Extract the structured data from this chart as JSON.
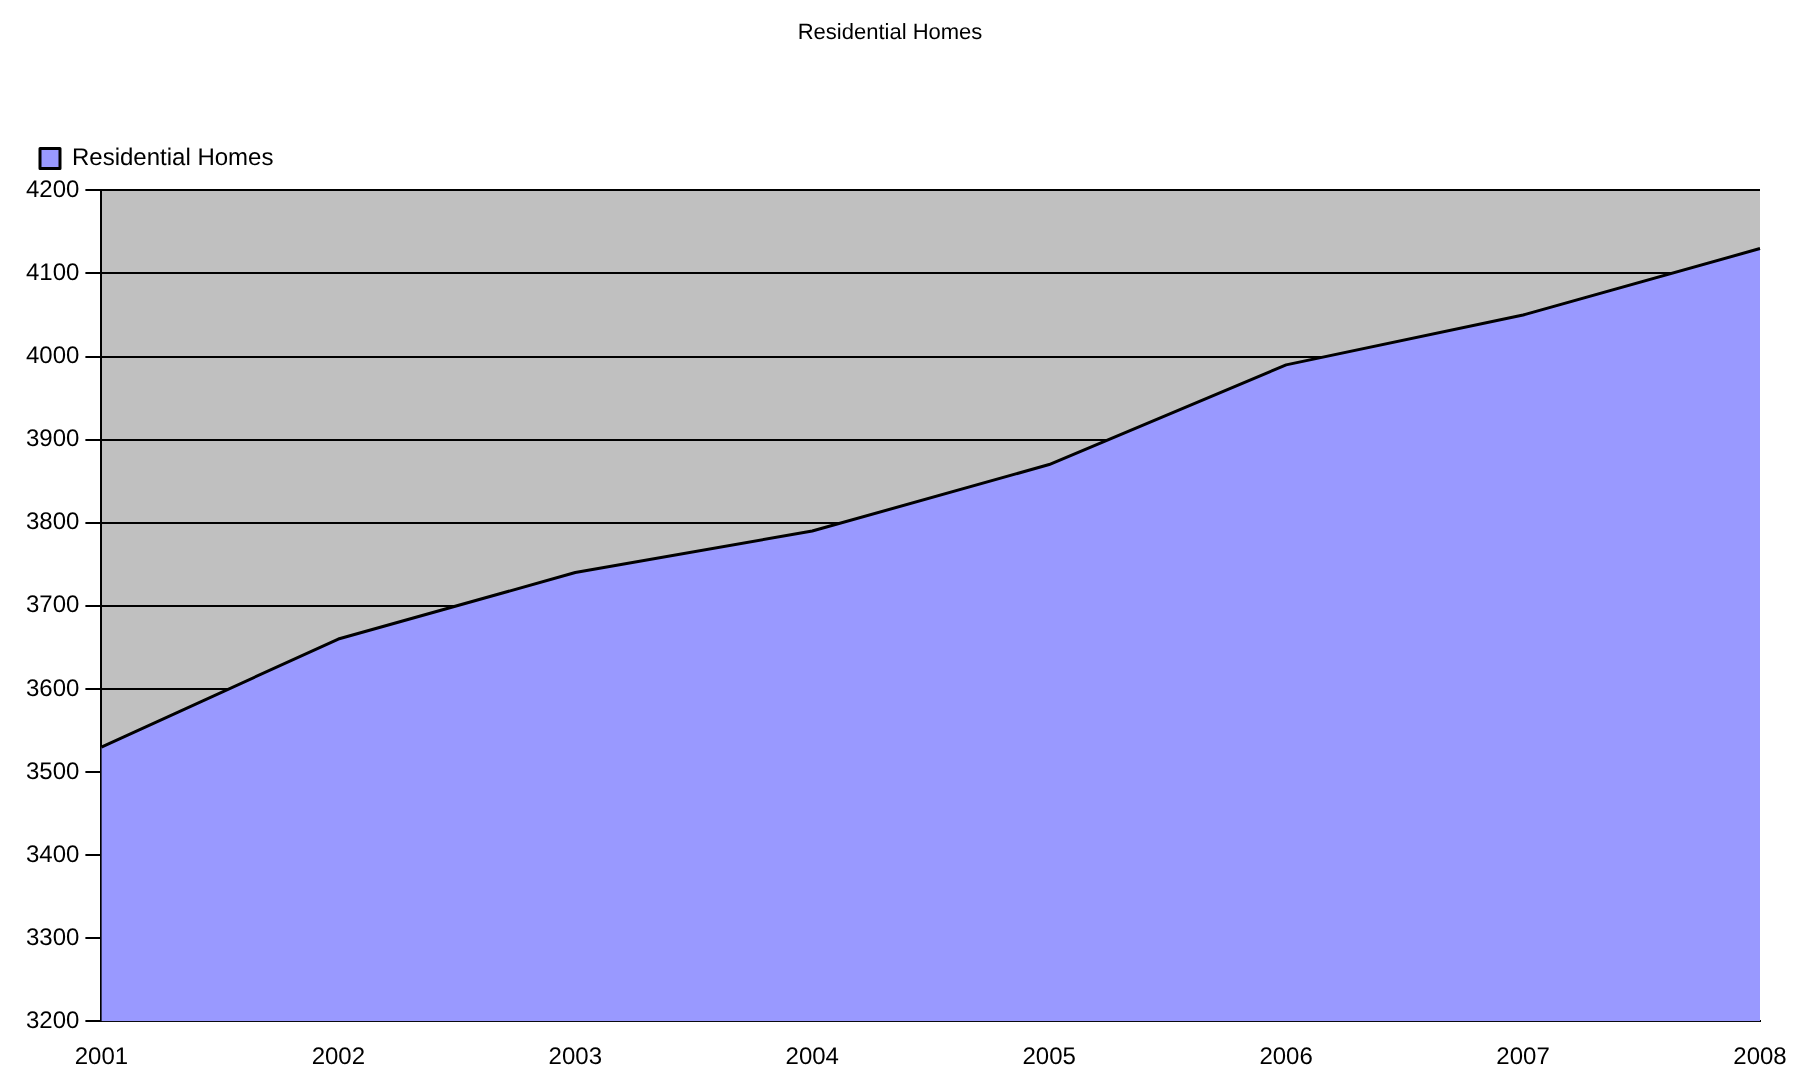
{
  "chart_data": {
    "type": "area",
    "title": "Residential Homes",
    "categories": [
      "2001",
      "2002",
      "2003",
      "2004",
      "2005",
      "2006",
      "2007",
      "2008"
    ],
    "series": [
      {
        "name": "Residential Homes",
        "color": "#9999ff",
        "values": [
          3530,
          3660,
          3740,
          3790,
          3870,
          3990,
          4050,
          4130
        ]
      }
    ],
    "ylim": [
      3200,
      4200
    ],
    "yticks": [
      3200,
      3300,
      3400,
      3500,
      3600,
      3700,
      3800,
      3900,
      4000,
      4100,
      4200
    ],
    "grid": "y",
    "legend": "top left"
  }
}
